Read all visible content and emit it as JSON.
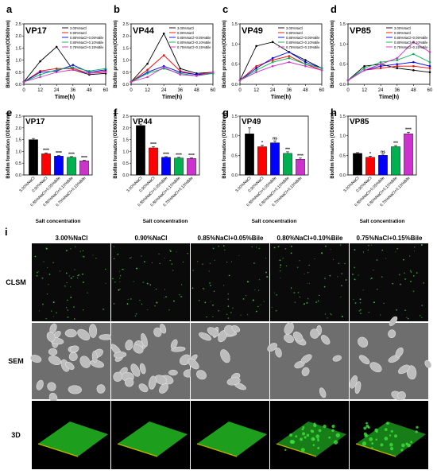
{
  "line_panels": [
    {
      "letter": "a",
      "title": "VP17"
    },
    {
      "letter": "b",
      "title": "VP44"
    },
    {
      "letter": "c",
      "title": "VP49"
    },
    {
      "letter": "d",
      "title": "VP85"
    }
  ],
  "bar_panels": [
    {
      "letter": "e",
      "title": "VP17"
    },
    {
      "letter": "f",
      "title": "VP44"
    },
    {
      "letter": "g",
      "title": "VP49"
    },
    {
      "letter": "h",
      "title": "VP85"
    }
  ],
  "image_panel": {
    "letter": "i",
    "columns": [
      "3.00%NaCl",
      "0.90%NaCl",
      "0.85%NaCl+0.05%Bile",
      "0.80%NaCl+0.10%Bile",
      "0.75%NaCl+0.15%Bile"
    ],
    "rows": [
      "CLSM",
      "SEM",
      "3D"
    ]
  },
  "colors": {
    "series": [
      "#000000",
      "#ff0000",
      "#0000ff",
      "#00b050",
      "#cc33cc"
    ],
    "clsm_bg": "#0a0a0a",
    "clsm_dot": "#3cd13c",
    "sem_bg": "#6e6e6e",
    "sem_cell": "#bdbdbd",
    "biofilm": "#1fa81f"
  },
  "chart_data": [
    {
      "type": "line",
      "panel": "a",
      "title": "VP17",
      "xlabel": "Time(h)",
      "ylabel": "Biofilm production(OD600nm)",
      "x": [
        0,
        12,
        24,
        36,
        48,
        60
      ],
      "xlim": [
        0,
        60
      ],
      "ylim": [
        0,
        2.5
      ],
      "yticks": [
        "0.0",
        "0.5",
        "1.0",
        "1.5",
        "2.0",
        "2.5"
      ],
      "series": [
        {
          "name": "3.00%NaCl",
          "values": [
            0.1,
            0.95,
            1.55,
            0.6,
            0.4,
            0.45
          ]
        },
        {
          "name": "0.90%NaCl",
          "values": [
            0.1,
            0.55,
            0.65,
            0.65,
            0.45,
            0.55
          ]
        },
        {
          "name": "0.85%NaCl+0.05%Bile",
          "values": [
            0.1,
            0.5,
            0.55,
            0.8,
            0.5,
            0.6
          ]
        },
        {
          "name": "0.80%NaCl+0.10%Bile",
          "values": [
            0.1,
            0.4,
            0.6,
            0.7,
            0.55,
            0.65
          ]
        },
        {
          "name": "0.75%NaCl+0.15%Bile",
          "values": [
            0.1,
            0.3,
            0.5,
            0.6,
            0.45,
            0.5
          ]
        }
      ]
    },
    {
      "type": "line",
      "panel": "b",
      "title": "VP44",
      "xlabel": "Time(h)",
      "ylabel": "Biofilm production(OD600nm)",
      "x": [
        0,
        12,
        24,
        36,
        48,
        60
      ],
      "xlim": [
        0,
        60
      ],
      "ylim": [
        0,
        2.5
      ],
      "yticks": [
        "0.0",
        "0.5",
        "1.0",
        "1.5",
        "2.0",
        "2.5"
      ],
      "series": [
        {
          "name": "3.00%NaCl",
          "values": [
            0.1,
            0.85,
            2.1,
            0.65,
            0.45,
            0.5
          ]
        },
        {
          "name": "0.90%NaCl",
          "values": [
            0.1,
            0.6,
            1.2,
            0.55,
            0.4,
            0.5
          ]
        },
        {
          "name": "0.85%NaCl+0.05%Bile",
          "values": [
            0.1,
            0.5,
            0.75,
            0.5,
            0.4,
            0.45
          ]
        },
        {
          "name": "0.80%NaCl+0.10%Bile",
          "values": [
            0.1,
            0.45,
            0.65,
            0.45,
            0.35,
            0.45
          ]
        },
        {
          "name": "0.75%NaCl+0.15%Bile",
          "values": [
            0.1,
            0.3,
            0.7,
            0.4,
            0.35,
            0.5
          ]
        }
      ]
    },
    {
      "type": "line",
      "panel": "c",
      "title": "VP49",
      "xlabel": "Time(h)",
      "ylabel": "Biofilm production(OD600nm)",
      "x": [
        0,
        12,
        24,
        36,
        48,
        60
      ],
      "xlim": [
        0,
        60
      ],
      "ylim": [
        0,
        1.5
      ],
      "yticks": [
        "0.0",
        "0.5",
        "1.0",
        "1.5"
      ],
      "series": [
        {
          "name": "3.00%NaCl",
          "values": [
            0.1,
            0.95,
            1.05,
            0.8,
            0.6,
            0.4
          ]
        },
        {
          "name": "0.90%NaCl",
          "values": [
            0.1,
            0.45,
            0.6,
            0.7,
            0.5,
            0.35
          ]
        },
        {
          "name": "0.85%NaCl+0.05%Bile",
          "values": [
            0.1,
            0.4,
            0.65,
            0.8,
            0.55,
            0.4
          ]
        },
        {
          "name": "0.80%NaCl+0.10%Bile",
          "values": [
            0.1,
            0.35,
            0.55,
            0.65,
            0.5,
            0.4
          ]
        },
        {
          "name": "0.75%NaCl+0.15%Bile",
          "values": [
            0.1,
            0.3,
            0.45,
            0.55,
            0.45,
            0.35
          ]
        }
      ]
    },
    {
      "type": "line",
      "panel": "d",
      "title": "VP85",
      "xlabel": "Time(h)",
      "ylabel": "Biofilm production(OD600nm)",
      "x": [
        0,
        12,
        24,
        36,
        48,
        60
      ],
      "xlim": [
        0,
        60
      ],
      "ylim": [
        0,
        1.5
      ],
      "yticks": [
        "0.0",
        "0.5",
        "1.0",
        "1.5"
      ],
      "series": [
        {
          "name": "3.00%NaCl",
          "values": [
            0.1,
            0.45,
            0.5,
            0.4,
            0.35,
            0.3
          ]
        },
        {
          "name": "0.90%NaCl",
          "values": [
            0.1,
            0.35,
            0.4,
            0.45,
            0.45,
            0.4
          ]
        },
        {
          "name": "0.85%NaCl+0.05%Bile",
          "values": [
            0.1,
            0.35,
            0.45,
            0.5,
            0.55,
            0.45
          ]
        },
        {
          "name": "0.80%NaCl+0.10%Bile",
          "values": [
            0.1,
            0.4,
            0.55,
            0.6,
            0.75,
            0.55
          ]
        },
        {
          "name": "0.75%NaCl+0.15%Bile",
          "values": [
            0.1,
            0.35,
            0.5,
            0.65,
            1.05,
            0.8
          ]
        }
      ]
    },
    {
      "type": "bar",
      "panel": "e",
      "title": "VP17",
      "xlabel": "Salt concentration",
      "ylabel": "Biofilm formation (OD600nm)",
      "categories": [
        "3.00%NaCl",
        "0.90%NaCl",
        "0.85%NaCl+0.05%Bile",
        "0.80%NaCl+0.10%Bile",
        "0.75%NaCl+0.15%Bile"
      ],
      "values": [
        1.5,
        0.9,
        0.8,
        0.75,
        0.6
      ],
      "errors": [
        0.05,
        0.04,
        0.03,
        0.03,
        0.03
      ],
      "significance": [
        "",
        "****",
        "****",
        "****",
        "****"
      ],
      "ylim": [
        0,
        2.5
      ],
      "yticks": [
        "0.0",
        "0.5",
        "1.0",
        "1.5",
        "2.0",
        "2.5"
      ]
    },
    {
      "type": "bar",
      "panel": "f",
      "title": "VP44",
      "xlabel": "Salt concentration",
      "ylabel": "Biofilm formation (OD600nm)",
      "categories": [
        "3.00%NaCl",
        "0.90%NaCl",
        "0.85%NaCl+0.05%Bile",
        "0.80%NaCl+0.10%Bile",
        "0.75%NaCl+0.15%Bile"
      ],
      "values": [
        2.1,
        1.15,
        0.75,
        0.72,
        0.7
      ],
      "errors": [
        0.06,
        0.05,
        0.03,
        0.03,
        0.03
      ],
      "significance": [
        "",
        "****",
        "****",
        "****",
        "****"
      ],
      "ylim": [
        0,
        2.5
      ],
      "yticks": [
        "0.0",
        "0.5",
        "1.0",
        "1.5",
        "2.0",
        "2.5"
      ]
    },
    {
      "type": "bar",
      "panel": "g",
      "title": "VP49",
      "xlabel": "Salt concentration",
      "ylabel": "Biofilm formation (OD600nm)",
      "categories": [
        "3.00%NaCl",
        "0.90%NaCl",
        "0.85%NaCl+0.05%Bile",
        "0.80%NaCl+0.10%Bile",
        "0.75%NaCl+0.15%Bile"
      ],
      "values": [
        1.05,
        0.72,
        0.82,
        0.55,
        0.4
      ],
      "errors": [
        0.15,
        0.04,
        0.05,
        0.04,
        0.03
      ],
      "significance": [
        "",
        "*",
        "ns",
        "***",
        "****"
      ],
      "ylim": [
        0,
        1.5
      ],
      "yticks": [
        "0.0",
        "0.5",
        "1.0",
        "1.5"
      ]
    },
    {
      "type": "bar",
      "panel": "h",
      "title": "VP85",
      "xlabel": "Salt concentration",
      "ylabel": "Biofilm formation (OD600nm)",
      "categories": [
        "3.00%NaCl",
        "0.90%NaCl",
        "0.85%NaCl+0.05%Bile",
        "0.80%NaCl+0.10%Bile",
        "0.75%NaCl+0.15%Bile"
      ],
      "values": [
        0.55,
        0.45,
        0.5,
        0.72,
        1.05
      ],
      "errors": [
        0.02,
        0.03,
        0.03,
        0.03,
        0.04
      ],
      "significance": [
        "",
        "*",
        "ns",
        "***",
        "****"
      ],
      "ylim": [
        0,
        1.5
      ],
      "yticks": [
        "0.0",
        "0.5",
        "1.0",
        "1.5"
      ]
    }
  ]
}
